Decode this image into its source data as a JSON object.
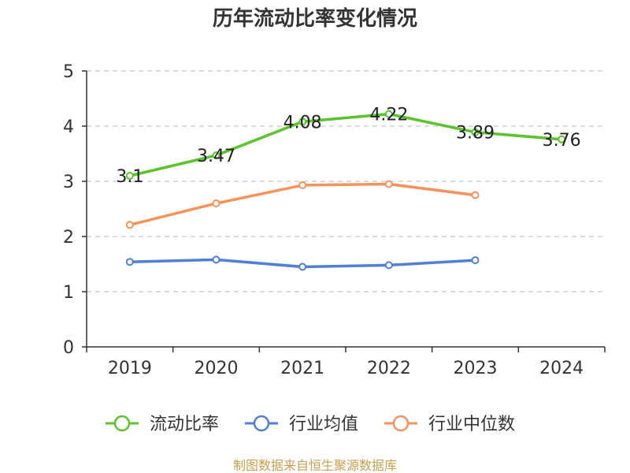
{
  "chart_data": {
    "type": "line",
    "title": "历年流动比率变化情况",
    "categories": [
      "2019",
      "2020",
      "2021",
      "2022",
      "2023",
      "2024"
    ],
    "ylim": [
      0,
      5
    ],
    "yticks": [
      "0",
      "1",
      "2",
      "3",
      "4",
      "5"
    ],
    "grid": true,
    "legend_position": "bottom",
    "series": [
      {
        "name": "流动比率",
        "color": "#5ac42b",
        "values": [
          3.1,
          3.47,
          4.08,
          4.22,
          3.89,
          3.76
        ],
        "labels": [
          "3.1",
          "3.47",
          "4.08",
          "4.22",
          "3.89",
          "3.76"
        ]
      },
      {
        "name": "行业均值",
        "color": "#4f7fd8",
        "values": [
          1.54,
          1.58,
          1.45,
          1.48,
          1.57,
          null
        ]
      },
      {
        "name": "行业中位数",
        "color": "#f7925a",
        "values": [
          2.21,
          2.6,
          2.93,
          2.95,
          2.75,
          null
        ]
      }
    ],
    "source": "制图数据来自恒生聚源数据库"
  }
}
